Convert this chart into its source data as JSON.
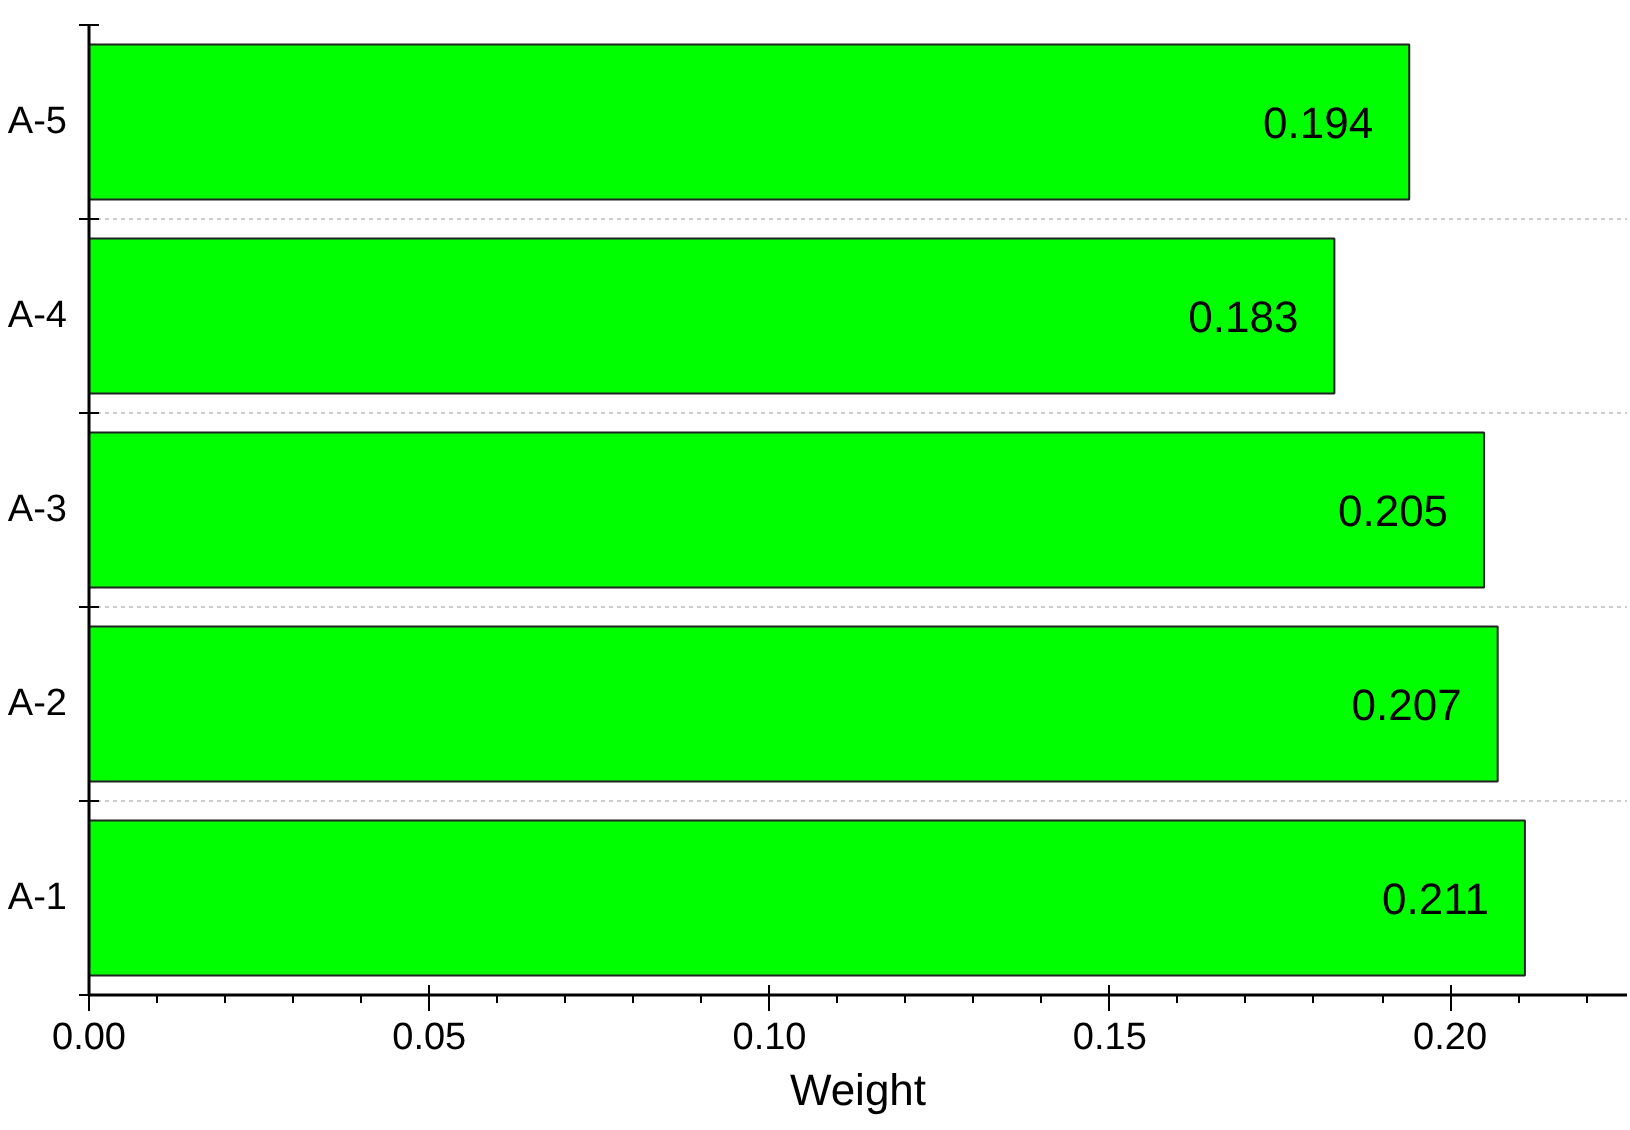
{
  "chart_data": {
    "type": "bar",
    "orientation": "horizontal",
    "xlabel": "Weight",
    "categories": [
      "A-5",
      "A-4",
      "A-3",
      "A-2",
      "A-1"
    ],
    "values": [
      0.194,
      0.183,
      0.205,
      0.207,
      0.211
    ],
    "color": "#00ff00",
    "xlim": [
      0,
      0.226
    ],
    "xticks": [
      "0.00",
      "0.05",
      "0.10",
      "0.15",
      "0.20"
    ],
    "data_labels": true,
    "grid": "y"
  }
}
